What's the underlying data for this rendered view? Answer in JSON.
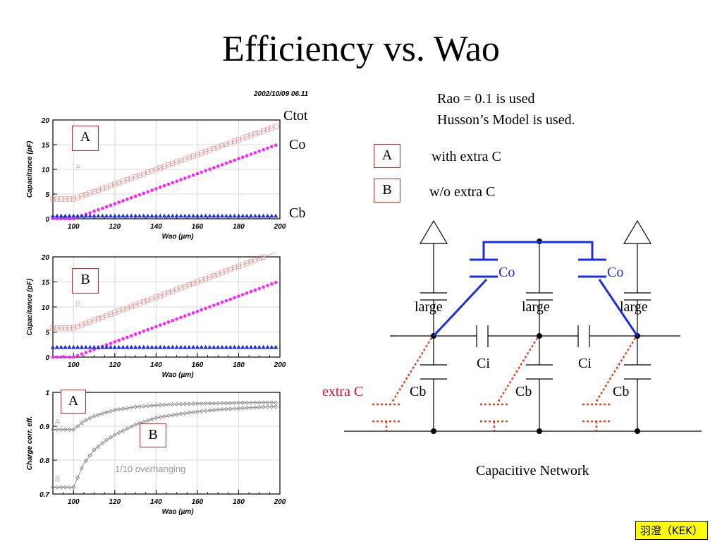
{
  "title": "Efficiency vs. Wao",
  "date_stamp": "2002/10/09   06.11",
  "notes": [
    "Rao = 0.1 is used",
    "Husson’s Model is used."
  ],
  "legend": [
    {
      "box": "A",
      "text": "with extra C"
    },
    {
      "box": "B",
      "text": "w/o extra C"
    }
  ],
  "plot_side_labels": {
    "ctot": "Ctot",
    "co": "Co",
    "cb": "Cb"
  },
  "plot_boxes": {
    "top": "A",
    "middle": "B",
    "bottom_a": "A",
    "bottom_b": "B"
  },
  "circuit": {
    "caption": "Capacitive Network",
    "co": "Co",
    "large": "large",
    "ci": "Ci",
    "cb": "Cb",
    "extra_c": "extra C",
    "colors": {
      "co_wire": "#1a2ee0",
      "extra_wire": "#e0401a",
      "extra_label": "#e0102a"
    }
  },
  "credit": "羽澄（KEK）",
  "chart_data": [
    {
      "type": "scatter",
      "xlabel": "Wao (µm)",
      "ylabel": "Capacitance (pF)",
      "xlim": [
        90,
        200
      ],
      "ylim": [
        0,
        20
      ],
      "xticks": [
        100,
        120,
        140,
        160,
        180,
        200
      ],
      "yticks": [
        0,
        5,
        10,
        15,
        20
      ],
      "inner_label": "A",
      "series": [
        {
          "name": "Ctot",
          "color": "#e89898",
          "x": [
            90,
            100,
            200
          ],
          "values": [
            4.0,
            4.0,
            19.0
          ]
        },
        {
          "name": "Co",
          "color": "#ff20ff",
          "x": [
            90,
            100,
            200
          ],
          "values": [
            0.0,
            0.0,
            15.2
          ]
        },
        {
          "name": "Cb",
          "color": "#1a2ee0",
          "x": [
            90,
            200
          ],
          "values": [
            0.6,
            0.6
          ]
        }
      ]
    },
    {
      "type": "scatter",
      "xlabel": "Wao (µm)",
      "ylabel": "Capacitance (pF)",
      "xlim": [
        90,
        200
      ],
      "ylim": [
        0,
        20
      ],
      "xticks": [
        100,
        120,
        140,
        160,
        180,
        200
      ],
      "yticks": [
        0,
        5,
        10,
        15,
        20
      ],
      "inner_label": "B",
      "series": [
        {
          "name": "Ctot",
          "color": "#e89898",
          "x": [
            90,
            100,
            200
          ],
          "values": [
            5.8,
            5.8,
            21.2
          ]
        },
        {
          "name": "Co",
          "color": "#ff20ff",
          "x": [
            90,
            100,
            200
          ],
          "values": [
            0.0,
            0.0,
            15.2
          ]
        },
        {
          "name": "Cb",
          "color": "#1a2ee0",
          "x": [
            90,
            200
          ],
          "values": [
            2.0,
            2.0
          ]
        }
      ]
    },
    {
      "type": "scatter",
      "xlabel": "Wao (µm)",
      "ylabel": "Charge corr. eff.",
      "xlim": [
        90,
        200
      ],
      "ylim": [
        0.7,
        1.0
      ],
      "xticks": [
        100,
        120,
        140,
        160,
        180,
        200
      ],
      "yticks": [
        0.7,
        0.8,
        0.9,
        1.0
      ],
      "annotation": "1/10 overhanging",
      "series": [
        {
          "name": "A",
          "color": "#8a8a8a",
          "x": [
            90,
            100,
            105,
            110,
            120,
            130,
            140,
            150,
            160,
            170,
            180,
            190,
            198
          ],
          "values": [
            0.89,
            0.89,
            0.915,
            0.93,
            0.948,
            0.957,
            0.962,
            0.965,
            0.967,
            0.968,
            0.969,
            0.97,
            0.97
          ]
        },
        {
          "name": "B",
          "color": "#8a8a8a",
          "x": [
            90,
            100,
            105,
            110,
            115,
            120,
            130,
            140,
            150,
            160,
            170,
            180,
            190,
            198
          ],
          "values": [
            0.72,
            0.72,
            0.79,
            0.83,
            0.855,
            0.875,
            0.905,
            0.925,
            0.935,
            0.943,
            0.949,
            0.953,
            0.956,
            0.958
          ]
        }
      ]
    }
  ]
}
